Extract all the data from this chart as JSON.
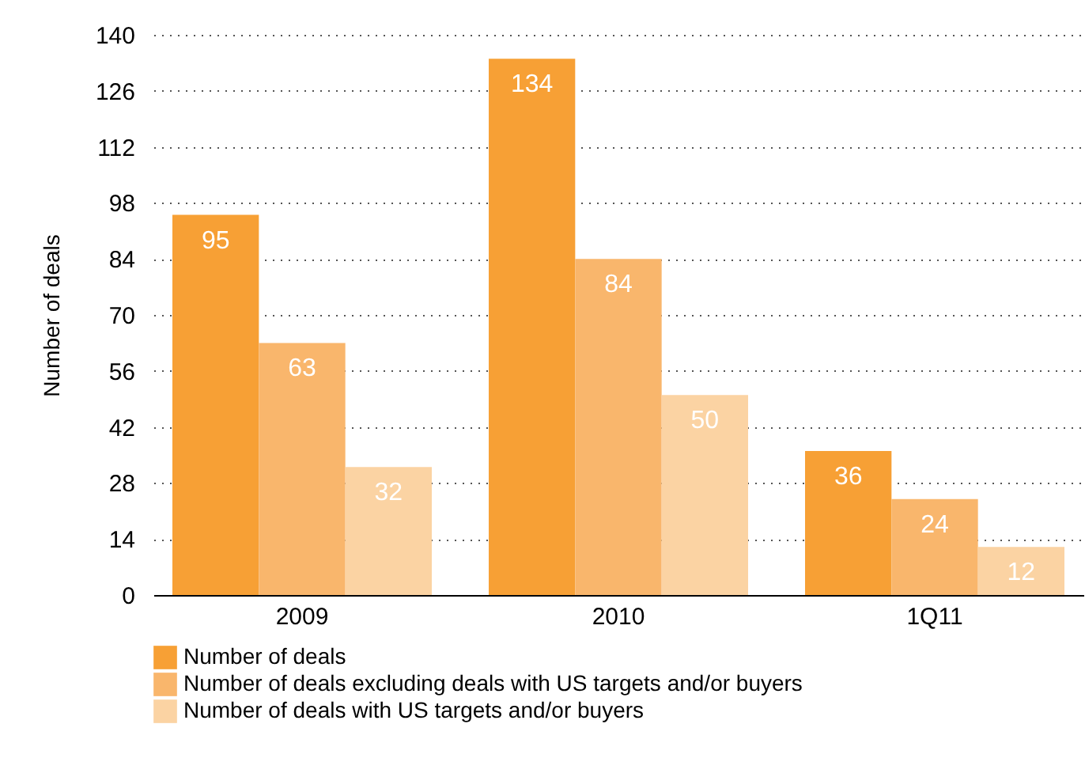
{
  "chart_data": {
    "type": "bar",
    "ylabel": "Number of deals",
    "categories": [
      "2009",
      "2010",
      "1Q11"
    ],
    "series": [
      {
        "name": "Number of deals",
        "color": "#f7a035",
        "values": [
          95,
          134,
          36
        ]
      },
      {
        "name": "Number of deals excluding deals with US targets and/or buyers",
        "color": "#f9b66c",
        "values": [
          63,
          84,
          24
        ]
      },
      {
        "name": "Number of deals with US targets and/or buyers",
        "color": "#fbd3a3",
        "values": [
          32,
          50,
          12
        ]
      }
    ],
    "ylim": [
      0,
      140
    ],
    "yticks": [
      0,
      14,
      28,
      42,
      56,
      70,
      84,
      98,
      112,
      126,
      140
    ],
    "grid": "y",
    "legend": "bottom left",
    "data_labels": true
  }
}
